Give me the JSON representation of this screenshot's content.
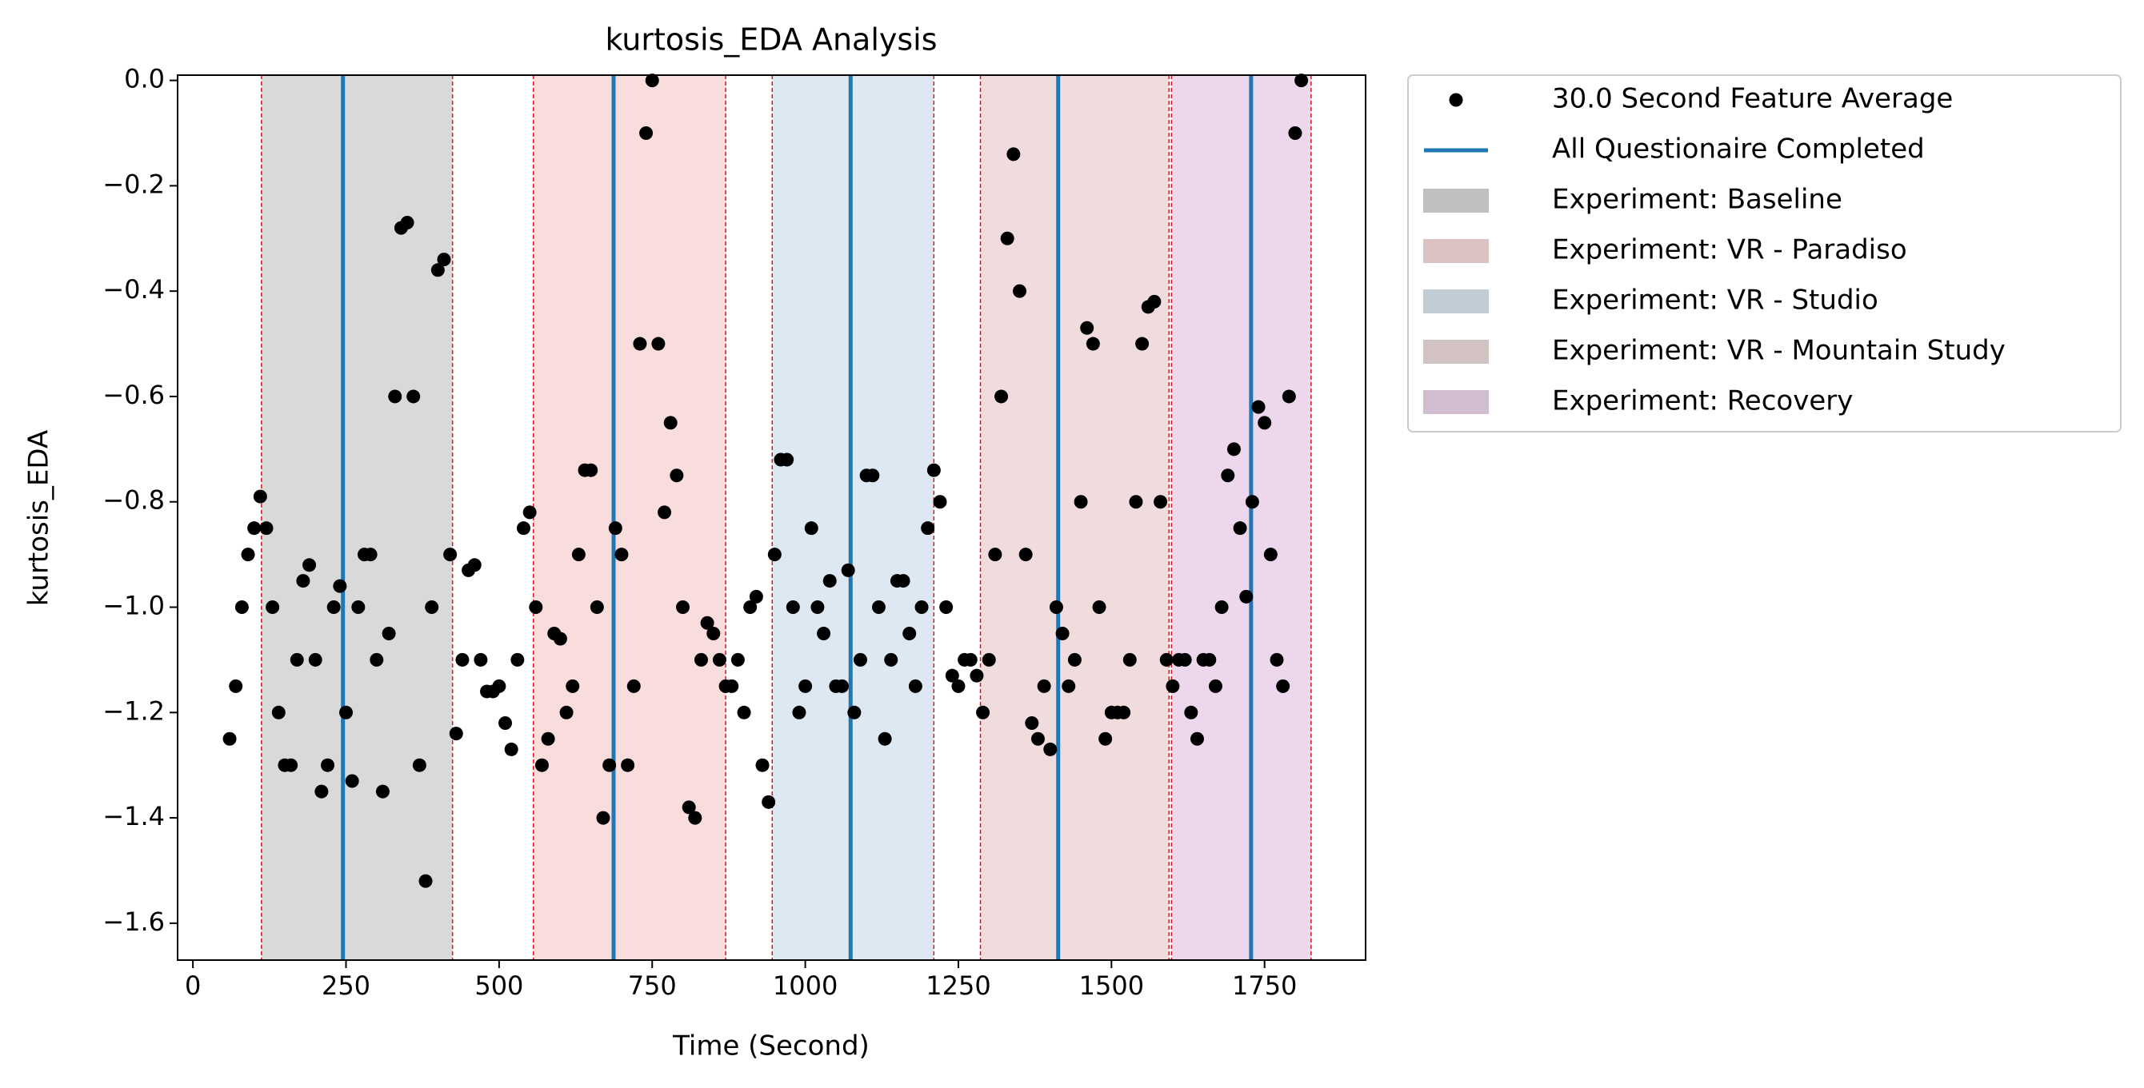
{
  "chart_data": {
    "type": "scatter",
    "title": "kurtosis_EDA Analysis",
    "xlabel": "Time (Second)",
    "ylabel": "kurtosis_EDA",
    "xlim": [
      -25,
      1915
    ],
    "ylim": [
      -1.67,
      0.01
    ],
    "xticks": [
      0,
      250,
      500,
      750,
      1000,
      1250,
      1500,
      1750
    ],
    "yticks": [
      {
        "value": -1.6,
        "label": "−1.6"
      },
      {
        "value": -1.4,
        "label": "−1.4"
      },
      {
        "value": -1.2,
        "label": "−1.2"
      },
      {
        "value": -1.0,
        "label": "−1.0"
      },
      {
        "value": -0.8,
        "label": "−0.8"
      },
      {
        "value": -0.6,
        "label": "−0.6"
      },
      {
        "value": -0.4,
        "label": "−0.4"
      },
      {
        "value": -0.2,
        "label": "−0.2"
      },
      {
        "value": 0.0,
        "label": "0.0"
      }
    ],
    "legend": "outside",
    "series": [
      {
        "name": "30.0 Second Feature Average",
        "color": "#000000",
        "x": [
          60,
          70,
          80,
          90,
          100,
          110,
          120,
          130,
          140,
          150,
          160,
          170,
          180,
          190,
          200,
          210,
          220,
          230,
          240,
          250,
          260,
          270,
          280,
          290,
          300,
          310,
          320,
          330,
          340,
          350,
          360,
          370,
          380,
          390,
          400,
          410,
          420,
          430,
          440,
          450,
          460,
          470,
          480,
          490,
          500,
          510,
          520,
          530,
          540,
          550,
          560,
          570,
          580,
          590,
          600,
          610,
          620,
          630,
          640,
          650,
          660,
          670,
          680,
          690,
          700,
          710,
          720,
          730,
          740,
          750,
          760,
          770,
          780,
          790,
          800,
          810,
          820,
          830,
          840,
          850,
          860,
          870,
          880,
          890,
          900,
          910,
          920,
          930,
          940,
          950,
          960,
          970,
          980,
          990,
          1000,
          1010,
          1020,
          1030,
          1040,
          1050,
          1060,
          1070,
          1080,
          1090,
          1100,
          1110,
          1120,
          1130,
          1140,
          1150,
          1160,
          1170,
          1180,
          1190,
          1200,
          1210,
          1220,
          1230,
          1240,
          1250,
          1260,
          1270,
          1280,
          1290,
          1300,
          1310,
          1320,
          1330,
          1340,
          1350,
          1360,
          1370,
          1380,
          1390,
          1400,
          1410,
          1420,
          1430,
          1440,
          1450,
          1460,
          1470,
          1480,
          1490,
          1500,
          1510,
          1520,
          1530,
          1540,
          1550,
          1560,
          1570,
          1580,
          1590,
          1600,
          1610,
          1620,
          1630,
          1640,
          1650,
          1660,
          1670,
          1680,
          1690,
          1700,
          1710,
          1720,
          1730,
          1740,
          1750,
          1760,
          1770,
          1780,
          1790,
          1800,
          1810
        ],
        "values": [
          -1.25,
          -1.15,
          -1.0,
          -0.9,
          -0.85,
          -0.79,
          -0.85,
          -1.0,
          -1.2,
          -1.3,
          -1.3,
          -1.1,
          -0.95,
          -0.92,
          -1.1,
          -1.35,
          -1.3,
          -1.0,
          -0.96,
          -1.2,
          -1.33,
          -1.0,
          -0.9,
          -0.9,
          -1.1,
          -1.35,
          -1.05,
          -0.6,
          -0.28,
          -0.27,
          -0.6,
          -1.3,
          -1.52,
          -1.0,
          -0.36,
          -0.34,
          -0.9,
          -1.24,
          -1.1,
          -0.93,
          -0.92,
          -1.1,
          -1.16,
          -1.16,
          -1.15,
          -1.22,
          -1.27,
          -1.1,
          -0.85,
          -0.82,
          -1.0,
          -1.3,
          -1.25,
          -1.05,
          -1.06,
          -1.2,
          -1.15,
          -0.9,
          -0.74,
          -0.74,
          -1.0,
          -1.4,
          -1.3,
          -0.85,
          -0.9,
          -1.3,
          -1.15,
          -0.5,
          -0.1,
          0.0,
          -0.5,
          -0.82,
          -0.65,
          -0.75,
          -1.0,
          -1.38,
          -1.4,
          -1.1,
          -1.03,
          -1.05,
          -1.1,
          -1.15,
          -1.15,
          -1.1,
          -1.2,
          -1.0,
          -0.98,
          -1.3,
          -1.37,
          -0.9,
          -0.72,
          -0.72,
          -1.0,
          -1.2,
          -1.15,
          -0.85,
          -1.0,
          -1.05,
          -0.95,
          -1.15,
          -1.15,
          -0.93,
          -1.2,
          -1.1,
          -0.75,
          -0.75,
          -1.0,
          -1.25,
          -1.1,
          -0.95,
          -0.95,
          -1.05,
          -1.15,
          -1.0,
          -0.85,
          -0.74,
          -0.8,
          -1.0,
          -1.13,
          -1.15,
          -1.1,
          -1.1,
          -1.13,
          -1.2,
          -1.1,
          -0.9,
          -0.6,
          -0.3,
          -0.14,
          -0.4,
          -0.9,
          -1.22,
          -1.25,
          -1.15,
          -1.27,
          -1.0,
          -1.05,
          -1.15,
          -1.1,
          -0.8,
          -0.47,
          -0.5,
          -1.0,
          -1.25,
          -1.2,
          -1.2,
          -1.2,
          -1.1,
          -0.8,
          -0.5,
          -0.43,
          -0.42,
          -0.8,
          -1.1,
          -1.15,
          -1.1,
          -1.1,
          -1.2,
          -1.25,
          -1.1,
          -1.1,
          -1.15,
          -1.0,
          -0.75,
          -0.7,
          -0.85,
          -0.98,
          -0.8,
          -0.62,
          -0.65,
          -0.9,
          -1.1,
          -1.15,
          -0.6,
          -0.1,
          0.0
        ]
      }
    ],
    "vlines": {
      "name": "All Questionaire Completed",
      "color": "#1f77b4",
      "x": [
        245,
        687,
        1074,
        1413,
        1728
      ]
    },
    "spans": [
      {
        "name": "Experiment: Baseline",
        "color": "#d9d9d9",
        "start": 112,
        "end": 424
      },
      {
        "name": "Experiment: VR - Paradiso",
        "color": "#f9dcdc",
        "start": 556,
        "end": 870
      },
      {
        "name": "Experiment: VR - Studio",
        "color": "#dde8f2",
        "start": 946,
        "end": 1210
      },
      {
        "name": "Experiment: VR - Mountain Study",
        "color": "#f0dcdc",
        "start": 1286,
        "end": 1594
      },
      {
        "name": "Experiment: Recovery",
        "color": "#ecd7ec",
        "start": 1598,
        "end": 1826
      }
    ]
  }
}
